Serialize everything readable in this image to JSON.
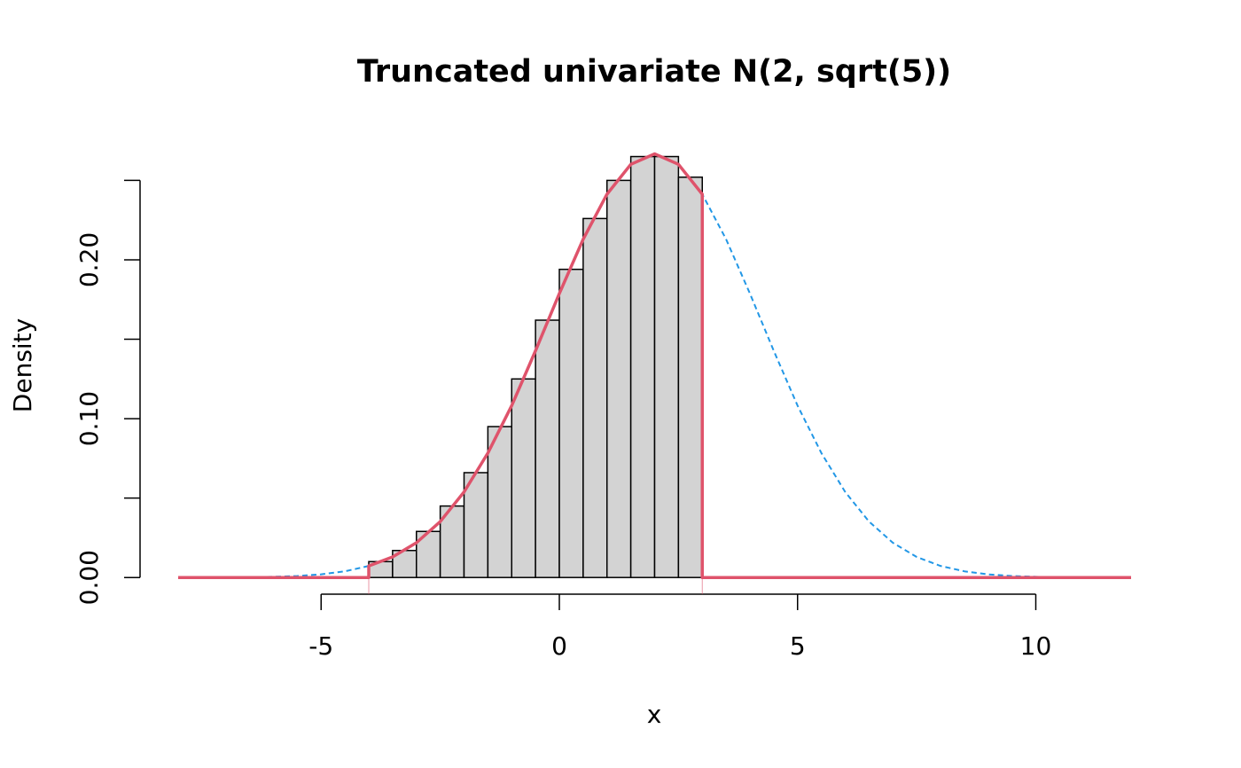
{
  "chart_data": {
    "type": "histogram",
    "title": "Truncated univariate N(2, sqrt(5))",
    "x_label": "x",
    "y_label": "Density",
    "bins": [
      -4,
      -3.5,
      -3,
      -2.5,
      -2,
      -1.5,
      -1,
      -0.5,
      0,
      0.5,
      1,
      1.5,
      2,
      2.5,
      3
    ],
    "values": [
      0.01,
      0.017,
      0.029,
      0.045,
      0.066,
      0.095,
      0.125,
      0.162,
      0.194,
      0.226,
      0.25,
      0.265,
      0.265,
      0.252
    ],
    "color": "#d3d3d3",
    "edge_color": "#000000",
    "series": [
      {
        "color": "#2297e6",
        "dashed": true,
        "x": [
          -8,
          -7.5,
          -7,
          -6.5,
          -6,
          -5.5,
          -5,
          -4.5,
          -4,
          -3.5,
          -3,
          -2.5,
          -2,
          -1.5,
          -1,
          -0.5,
          0,
          0.5,
          1,
          1.5,
          2,
          2.5,
          3,
          3.5,
          4,
          4.5,
          5,
          5.5,
          6,
          6.5,
          7,
          7.5,
          8,
          8.5,
          9,
          9.5,
          10,
          10.5,
          11,
          11.5,
          12
        ],
        "values": [
          1e-05,
          3e-05,
          7e-05,
          0.00019,
          0.00045,
          0.00096,
          0.00199,
          0.0039,
          0.00728,
          0.01294,
          0.02188,
          0.0352,
          0.05384,
          0.07834,
          0.10819,
          0.14275,
          0.17876,
          0.21295,
          0.2413,
          0.2601,
          0.26668,
          0.2601,
          0.2413,
          0.21295,
          0.17876,
          0.14275,
          0.10819,
          0.07834,
          0.05384,
          0.0352,
          0.02188,
          0.01294,
          0.00728,
          0.0039,
          0.00199,
          0.00096,
          0.00045,
          0.00019,
          7e-05,
          3e-05,
          1e-05
        ]
      },
      {
        "color": "#df536b",
        "dashed": false,
        "x": [
          -8,
          -4,
          -4,
          -3.5,
          -3,
          -2.5,
          -2,
          -1.5,
          -1,
          -0.5,
          0,
          0.5,
          1,
          1.5,
          2,
          2.5,
          3,
          3,
          12
        ],
        "values": [
          0,
          0,
          0.00728,
          0.01294,
          0.02188,
          0.0352,
          0.05384,
          0.07834,
          0.10819,
          0.14275,
          0.17876,
          0.21295,
          0.2413,
          0.2601,
          0.26668,
          0.2601,
          0.2413,
          0,
          0
        ]
      }
    ],
    "vlines": [
      -4,
      3
    ],
    "vline_color": "#df536b",
    "xlim": [
      -8.8,
      12.8
    ],
    "ylim": [
      -0.0105,
      0.272
    ],
    "xticks": [
      -5,
      0,
      5,
      10
    ],
    "yticks": [
      {
        "value": 0,
        "label": "0.00"
      },
      {
        "value": 0.05,
        "label": null
      },
      {
        "value": 0.1,
        "label": "0.10"
      },
      {
        "value": 0.15,
        "label": null
      },
      {
        "value": 0.2,
        "label": "0.20"
      },
      {
        "value": 0.25,
        "label": null
      }
    ]
  }
}
